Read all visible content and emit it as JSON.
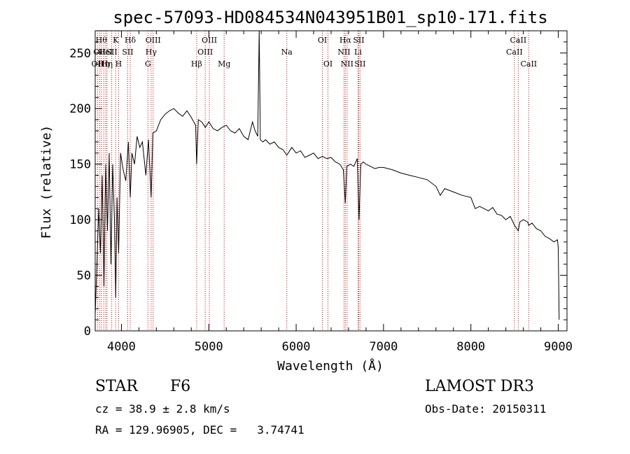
{
  "chart_data": {
    "type": "line",
    "title": "spec-57093-HD084534N043951B01_sp10-171.fits",
    "xlabel": "Wavelength (Å)",
    "ylabel": "Flux (relative)",
    "xlim": [
      3700,
      9100
    ],
    "ylim": [
      0,
      270
    ],
    "xticks": [
      4000,
      5000,
      6000,
      7000,
      8000,
      9000
    ],
    "yticks": [
      0,
      50,
      100,
      150,
      200,
      250
    ],
    "grid": false,
    "line_color": "#000000",
    "marker_color": "#cc0000",
    "series": [
      {
        "x": [
          3700,
          3720,
          3740,
          3760,
          3780,
          3800,
          3820,
          3840,
          3860,
          3880,
          3900,
          3920,
          3935,
          3950,
          3968,
          3990,
          4020,
          4050,
          4080,
          4101,
          4120,
          4150,
          4180,
          4210,
          4240,
          4280,
          4310,
          4340,
          4360,
          4400,
          4450,
          4500,
          4550,
          4600,
          4650,
          4700,
          4750,
          4800,
          4850,
          4861,
          4880,
          4920,
          4960,
          5000,
          5050,
          5100,
          5150,
          5200,
          5250,
          5300,
          5350,
          5400,
          5450,
          5500,
          5530,
          5560,
          5577,
          5590,
          5620,
          5650,
          5700,
          5750,
          5800,
          5850,
          5893,
          5950,
          6000,
          6050,
          6100,
          6150,
          6200,
          6250,
          6300,
          6350,
          6400,
          6450,
          6500,
          6540,
          6563,
          6580,
          6620,
          6660,
          6700,
          6720,
          6740,
          6770,
          6800,
          6850,
          6900,
          6950,
          7000,
          7100,
          7200,
          7300,
          7400,
          7500,
          7600,
          7650,
          7700,
          7800,
          7900,
          8000,
          8050,
          8100,
          8150,
          8200,
          8250,
          8300,
          8350,
          8400,
          8450,
          8500,
          8542,
          8560,
          8600,
          8650,
          8662,
          8700,
          8750,
          8800,
          8850,
          8900,
          8950,
          8990,
          9000,
          9010
        ],
        "y": [
          15,
          60,
          110,
          70,
          140,
          40,
          150,
          90,
          160,
          60,
          150,
          100,
          30,
          120,
          70,
          160,
          145,
          135,
          170,
          120,
          160,
          150,
          175,
          165,
          170,
          140,
          172,
          120,
          178,
          180,
          190,
          195,
          198,
          200,
          196,
          193,
          198,
          192,
          185,
          150,
          190,
          188,
          183,
          188,
          182,
          180,
          183,
          185,
          180,
          178,
          182,
          175,
          172,
          188,
          180,
          175,
          270,
          172,
          170,
          172,
          168,
          170,
          165,
          163,
          158,
          165,
          160,
          162,
          156,
          158,
          160,
          155,
          157,
          155,
          156,
          152,
          150,
          145,
          115,
          148,
          150,
          148,
          155,
          100,
          150,
          152,
          150,
          148,
          146,
          147,
          147,
          145,
          142,
          140,
          138,
          136,
          130,
          122,
          128,
          125,
          122,
          120,
          110,
          112,
          110,
          108,
          111,
          105,
          104,
          100,
          103,
          95,
          90,
          98,
          100,
          98,
          95,
          97,
          92,
          90,
          85,
          83,
          80,
          82,
          75,
          10
        ]
      }
    ],
    "lines": [
      {
        "wl": 3727,
        "label": "OII",
        "row": 2
      },
      {
        "wl": 3750,
        "label": "OII",
        "row": 1
      },
      {
        "wl": 3770,
        "label": "Hθ",
        "row": 0
      },
      {
        "wl": 3798,
        "label": "Hη",
        "row": 2
      },
      {
        "wl": 3820,
        "label": "HeI",
        "row": 1
      },
      {
        "wl": 3835,
        "label": "Hη",
        "row": 2
      },
      {
        "wl": 3889,
        "label": "SII",
        "row": 1
      },
      {
        "wl": 3934,
        "label": "K",
        "row": 0
      },
      {
        "wl": 3968,
        "label": "H",
        "row": 2
      },
      {
        "wl": 4072,
        "label": "SII",
        "row": 1
      },
      {
        "wl": 4101,
        "label": "Hδ",
        "row": 0
      },
      {
        "wl": 4304,
        "label": "G",
        "row": 2
      },
      {
        "wl": 4340,
        "label": "Hγ",
        "row": 1
      },
      {
        "wl": 4363,
        "label": "OIII",
        "row": 0
      },
      {
        "wl": 4861,
        "label": "Hβ",
        "row": 2
      },
      {
        "wl": 4959,
        "label": "OIII",
        "row": 1
      },
      {
        "wl": 5007,
        "label": "OIII",
        "row": 0
      },
      {
        "wl": 5176,
        "label": "Mg",
        "row": 2
      },
      {
        "wl": 5893,
        "label": "Na",
        "row": 1
      },
      {
        "wl": 6300,
        "label": "OI",
        "row": 0
      },
      {
        "wl": 6364,
        "label": "OI",
        "row": 2
      },
      {
        "wl": 6548,
        "label": "NII",
        "row": 1
      },
      {
        "wl": 6563,
        "label": "Hα",
        "row": 0
      },
      {
        "wl": 6583,
        "label": "NII",
        "row": 2
      },
      {
        "wl": 6708,
        "label": "Li",
        "row": 1
      },
      {
        "wl": 6716,
        "label": "SII",
        "row": 0
      },
      {
        "wl": 6731,
        "label": "SII",
        "row": 2
      },
      {
        "wl": 8498,
        "label": "CaII",
        "row": 1
      },
      {
        "wl": 8542,
        "label": "CaII",
        "row": 0
      },
      {
        "wl": 8662,
        "label": "CaII",
        "row": 2
      }
    ]
  },
  "info": {
    "class_label": "STAR",
    "subclass": "F6",
    "survey": "LAMOST DR3",
    "cz": "cz = 38.9 ± 2.8 km/s",
    "obs_date": "Obs-Date: 20150311",
    "radec": "RA = 129.96905, DEC =   3.74741"
  }
}
